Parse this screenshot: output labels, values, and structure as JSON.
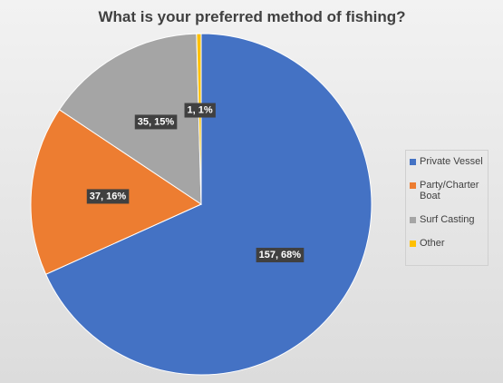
{
  "chart_data": {
    "type": "pie",
    "title": "What is your preferred method of fishing?",
    "categories": [
      "Private Vessel",
      "Party/Charter Boat",
      "Surf Casting",
      "Other"
    ],
    "values": [
      157,
      37,
      35,
      1
    ],
    "value_labels": [
      "157, 68%",
      "37, 16%",
      "35, 15%",
      "1, 1%"
    ],
    "colors": [
      "#4472c4",
      "#ed7d31",
      "#a5a5a5",
      "#ffc000"
    ],
    "legend": "right"
  }
}
